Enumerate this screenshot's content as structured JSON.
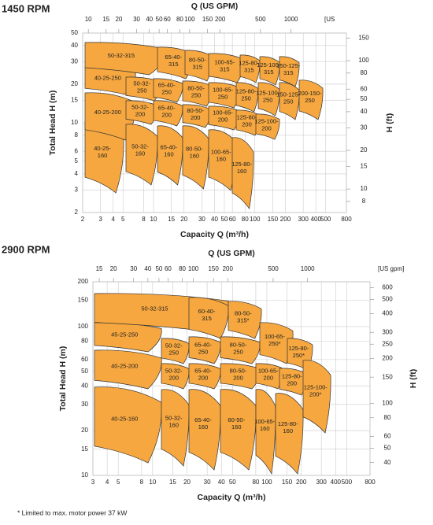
{
  "chart_data": [
    {
      "type": "region-map",
      "title": "1450 RPM",
      "top_axis_label": "Q (US GPM)",
      "top_axis_unit": "[US",
      "x_label": "Capacity Q (m³/h)",
      "y_label": "Total Head H (m)",
      "y2_label": "H (ft)",
      "log_scale": true,
      "grid": true,
      "color": "#f6a73f",
      "xlim": [
        2,
        800
      ],
      "xticks": [
        2,
        3,
        4,
        5,
        8,
        10,
        15,
        20,
        30,
        40,
        50,
        60,
        80,
        100,
        150,
        200,
        300,
        400,
        500,
        800
      ],
      "ylim": [
        2,
        50
      ],
      "yticks": [
        2,
        3,
        4,
        5,
        6,
        8,
        10,
        15,
        20,
        30,
        40,
        50
      ],
      "x2lim": [
        8.8,
        3522
      ],
      "x2ticks": [
        10,
        15,
        20,
        30,
        40,
        50,
        60,
        80,
        100,
        150,
        200,
        500,
        1000
      ],
      "y2lim": [
        6.56,
        164
      ],
      "y2ticks": [
        8,
        10,
        15,
        20,
        30,
        40,
        50,
        60,
        80,
        100,
        150
      ],
      "regions": [
        "40-25-160",
        "40-25-200",
        "40-25-250",
        "50-32-315",
        "50-32-250",
        "50-32-200",
        "50-32-160",
        "65-40-315",
        "65-40-250",
        "65-40-200",
        "65-40-160",
        "80-50-315",
        "80-50-250",
        "80-50-200",
        "80-50-160",
        "100-65-315",
        "100-65-250",
        "100-65-200",
        "100-65-160",
        "125-80-315",
        "125-80-250",
        "125-80-200",
        "125-80-160",
        "125-100-315",
        "125-100-250",
        "125-100-200",
        "150-125-315",
        "150-125-250",
        "200-150-250"
      ]
    },
    {
      "type": "region-map",
      "title": "2900 RPM",
      "top_axis_label": "Q (US GPM)",
      "top_axis_unit": "[US gpm]",
      "x_label": "Capacity Q (m³/h)",
      "y_label": "Total Head H (m)",
      "y2_label": "H (ft)",
      "log_scale": true,
      "grid": true,
      "color": "#f6a73f",
      "xlim": [
        3,
        800
      ],
      "xticks": [
        3,
        4,
        5,
        8,
        10,
        15,
        20,
        30,
        40,
        50,
        80,
        100,
        150,
        200,
        300,
        400,
        500,
        800
      ],
      "ylim": [
        10,
        200
      ],
      "yticks": [
        10,
        15,
        20,
        30,
        40,
        50,
        60,
        80,
        100,
        150,
        200
      ],
      "x2lim": [
        13.2,
        3522
      ],
      "x2ticks": [
        15,
        20,
        30,
        40,
        50,
        60,
        80,
        100,
        150,
        200,
        500,
        1000
      ],
      "y2lim": [
        32.8,
        656
      ],
      "y2ticks": [
        40,
        50,
        60,
        80,
        100,
        150,
        200,
        250,
        300,
        400,
        500,
        600
      ],
      "regions": [
        "40-25-160",
        "40-25-200",
        "45-25-250",
        "50-32-315",
        "50-32-250",
        "50-32-200",
        "50-32-160",
        "60-40-315",
        "65-40-250",
        "65-40-200",
        "65-40-160",
        "80-50-315*",
        "80-50-250",
        "80-50-200",
        "80-50-160",
        "100-65-250*",
        "100-65-200",
        "100-65-160",
        "125-80-250*",
        "125-80-200",
        "125-80-160",
        "125-100-200*"
      ]
    }
  ],
  "footnote": "* Limited to max. motor power 37 kW"
}
